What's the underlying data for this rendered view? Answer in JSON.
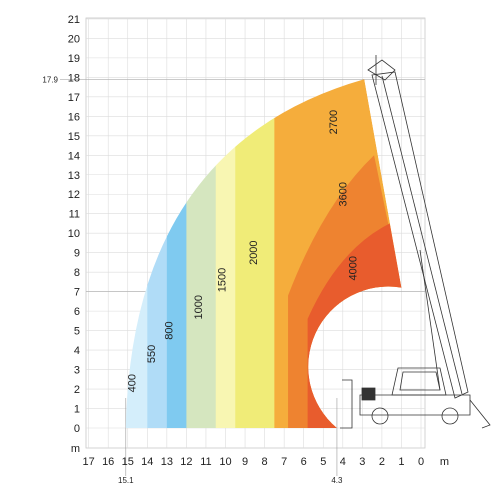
{
  "chart_data": {
    "type": "load-range-diagram",
    "x_axis": {
      "ticks": [
        "17",
        "16",
        "15",
        "14",
        "13",
        "12",
        "11",
        "10",
        "9",
        "8",
        "7",
        "6",
        "5",
        "4",
        "3",
        "2",
        "1",
        "0"
      ],
      "unit": "m",
      "annotations": [
        "15.1",
        "4.3"
      ],
      "range": [
        17,
        0
      ]
    },
    "y_axis": {
      "ticks": [
        "21",
        "20",
        "19",
        "18",
        "17",
        "16",
        "15",
        "14",
        "13",
        "12",
        "11",
        "10",
        "9",
        "8",
        "7",
        "6",
        "5",
        "4",
        "3",
        "2",
        "1",
        "0"
      ],
      "unit": "m",
      "annotations": [
        "17.9"
      ],
      "range": [
        0,
        21
      ]
    },
    "max_height": 17.9,
    "max_outreach": 15.1,
    "min_outreach": 4.3,
    "zones": [
      {
        "label": "400",
        "x_from": 15.1,
        "x_to": 14.0,
        "top": 9.4,
        "color": "#d4eefb"
      },
      {
        "label": "550",
        "x_from": 14.0,
        "x_to": 13.0,
        "top": 10.8,
        "color": "#b0dcf7"
      },
      {
        "label": "800",
        "x_from": 13.0,
        "x_to": 12.0,
        "top": 11.7,
        "color": "#7fcaf0"
      },
      {
        "label": "1000",
        "x_from": 12.0,
        "x_to": 10.5,
        "top": 13.6,
        "color": "#d5e6bf"
      },
      {
        "label": "1500",
        "x_from": 10.5,
        "x_to": 9.5,
        "top": 14.5,
        "color": "#f8f6b2"
      },
      {
        "label": "2000",
        "x_from": 9.5,
        "x_to": 7.5,
        "top": 16.1,
        "color": "#f0ec78"
      },
      {
        "label": "2700",
        "x_from": 7.5,
        "x_to": 2.9,
        "top": 17.9,
        "color": "#f5ad3c"
      },
      {
        "label": "3600",
        "x_from": 6.8,
        "x_to": 2.4,
        "top": 14.0,
        "color": "#ee8330"
      },
      {
        "label": "4000",
        "x_from": 5.8,
        "x_to": 1.0,
        "top": 10.5,
        "color": "#e85c2d"
      }
    ]
  }
}
